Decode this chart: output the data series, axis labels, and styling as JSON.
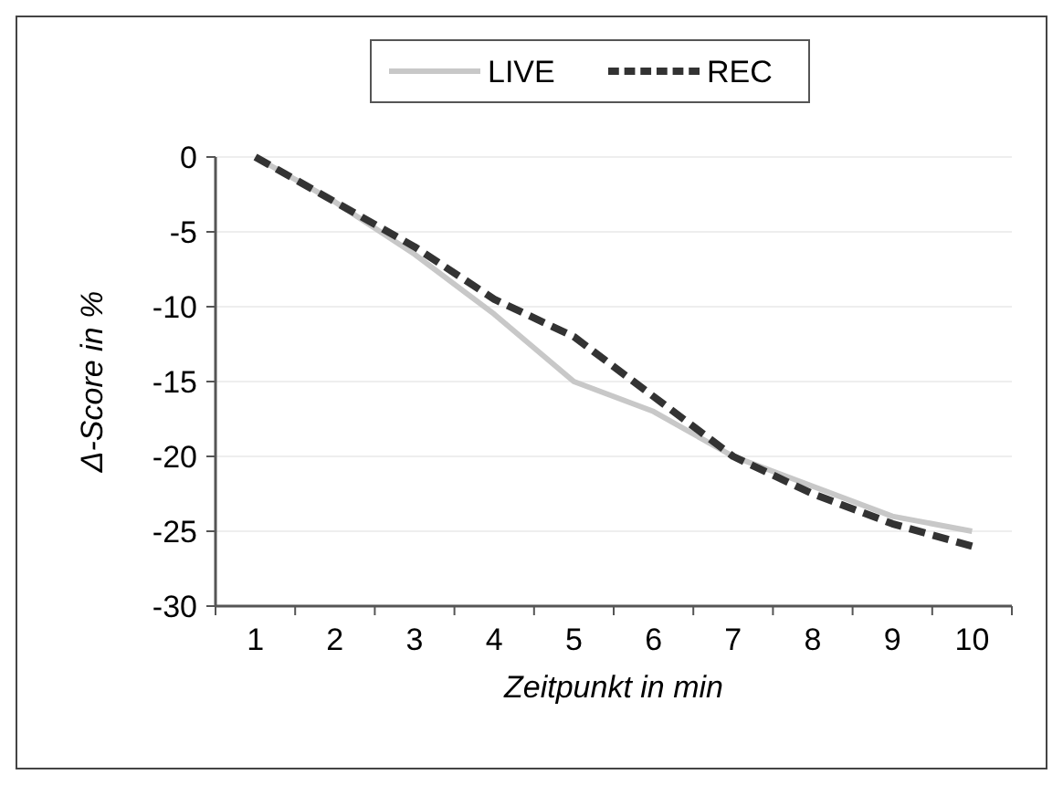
{
  "chart_data": {
    "type": "line",
    "xlabel": "Zeitpunkt in min",
    "ylabel": "Δ-Score in %",
    "categories": [
      "1",
      "2",
      "3",
      "4",
      "5",
      "6",
      "7",
      "8",
      "9",
      "10"
    ],
    "series": [
      {
        "name": "LIVE",
        "color": "#c8c8c8",
        "line_style": "solid",
        "values": [
          0,
          -3,
          -6.5,
          -10.5,
          -15,
          -17,
          -20,
          -22,
          -24,
          -25
        ]
      },
      {
        "name": "REC",
        "color": "#333333",
        "line_style": "dashed",
        "values": [
          0,
          -3,
          -6,
          -9.5,
          -12,
          -16,
          -20,
          -22.5,
          -24.5,
          -26
        ]
      }
    ],
    "ylim": [
      -30,
      0
    ],
    "yticks": [
      -30,
      -25,
      -20,
      -15,
      -10,
      -5,
      0
    ],
    "grid": "y",
    "legend": "top"
  }
}
